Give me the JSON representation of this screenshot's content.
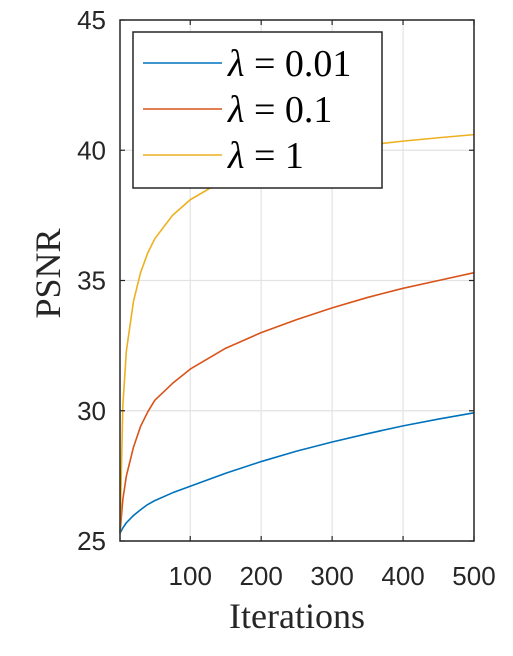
{
  "chart_data": {
    "type": "line",
    "xlabel": "Iterations",
    "ylabel": "PSNR",
    "xlim": [
      1,
      500
    ],
    "ylim": [
      25,
      45
    ],
    "xticks": [
      100,
      200,
      300,
      400,
      500
    ],
    "yticks": [
      25,
      30,
      35,
      40,
      45
    ],
    "grid": true,
    "legend_position": "top-left",
    "x": [
      1,
      5,
      10,
      20,
      30,
      40,
      50,
      75,
      100,
      150,
      200,
      250,
      300,
      350,
      400,
      450,
      500
    ],
    "series": [
      {
        "name": "λ = 0.01",
        "label_symbol": "λ",
        "label_value": "0.01",
        "color": "#0072BD",
        "values": [
          25.3,
          25.5,
          25.7,
          25.98,
          26.2,
          26.4,
          26.55,
          26.85,
          27.1,
          27.6,
          28.05,
          28.45,
          28.8,
          29.12,
          29.42,
          29.68,
          29.92
        ]
      },
      {
        "name": "λ = 0.1",
        "label_symbol": "λ",
        "label_value": "0.1",
        "color": "#D95319",
        "values": [
          25.3,
          26.6,
          27.5,
          28.6,
          29.4,
          29.95,
          30.4,
          31.05,
          31.6,
          32.4,
          33.0,
          33.5,
          33.95,
          34.35,
          34.7,
          35.0,
          35.3
        ]
      },
      {
        "name": "λ = 1",
        "label_symbol": "λ",
        "label_value": "1",
        "color": "#EDB120",
        "values": [
          25.3,
          30.2,
          32.3,
          34.2,
          35.3,
          36.05,
          36.6,
          37.5,
          38.1,
          38.9,
          39.4,
          39.75,
          40.0,
          40.2,
          40.35,
          40.48,
          40.6
        ]
      }
    ]
  }
}
